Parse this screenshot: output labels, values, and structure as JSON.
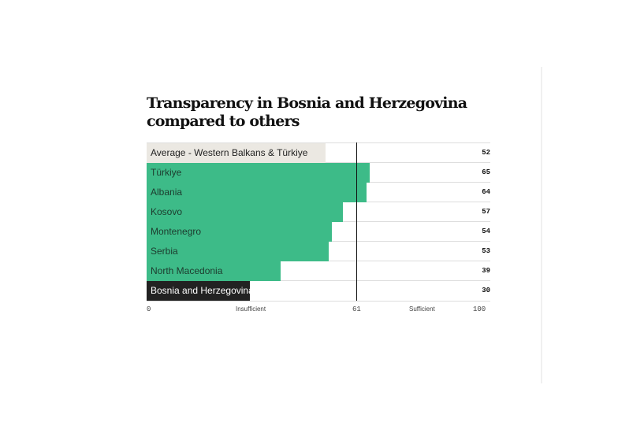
{
  "chart_data": {
    "type": "bar",
    "orientation": "horizontal",
    "title": "Transparency in Bosnia and Herzegovina compared to others",
    "categories": [
      "Average - Western Balkans & Türkiye",
      "Türkiye",
      "Albania",
      "Kosovo",
      "Montenegro",
      "Serbia",
      "North Macedonia",
      "Bosnia and Herzegovina"
    ],
    "values": [
      52,
      65,
      64,
      57,
      54,
      53,
      39,
      30
    ],
    "colors": [
      "#ebe8e2",
      "#3dbb88",
      "#3dbb88",
      "#3dbb88",
      "#3dbb88",
      "#3dbb88",
      "#3dbb88",
      "#222222"
    ],
    "label_colors": [
      "#222222",
      "#1d3b2e",
      "#1d3b2e",
      "#1d3b2e",
      "#1d3b2e",
      "#1d3b2e",
      "#1d3b2e",
      "#ffffff"
    ],
    "xlim": [
      0,
      100
    ],
    "reference_line": 61,
    "axis_labels": {
      "min": "0",
      "low": "Insufficient",
      "ref": "61",
      "high": "Sufficient",
      "max": "100"
    }
  }
}
